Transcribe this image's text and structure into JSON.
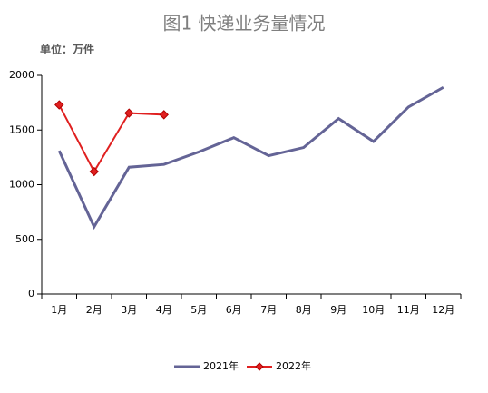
{
  "chart_data": {
    "type": "line",
    "title": "图1 快递业务量情况",
    "unit_label": "单位：万件",
    "categories": [
      "1月",
      "2月",
      "3月",
      "4月",
      "5月",
      "6月",
      "7月",
      "8月",
      "9月",
      "10月",
      "11月",
      "12月"
    ],
    "series": [
      {
        "name": "2021年",
        "color": "#646496",
        "values": [
          1310,
          615,
          1160,
          1185,
          1300,
          1430,
          1265,
          1340,
          1605,
          1395,
          1710,
          1890
        ]
      },
      {
        "name": "2022年",
        "color": "#e02020",
        "values": [
          1730,
          1120,
          1655,
          1640,
          null,
          null,
          null,
          null,
          null,
          null,
          null,
          null
        ]
      }
    ],
    "ylim": [
      0,
      2000
    ],
    "yticks": [
      0,
      500,
      1000,
      1500,
      2000
    ],
    "grid": false,
    "legend": "bottom"
  }
}
